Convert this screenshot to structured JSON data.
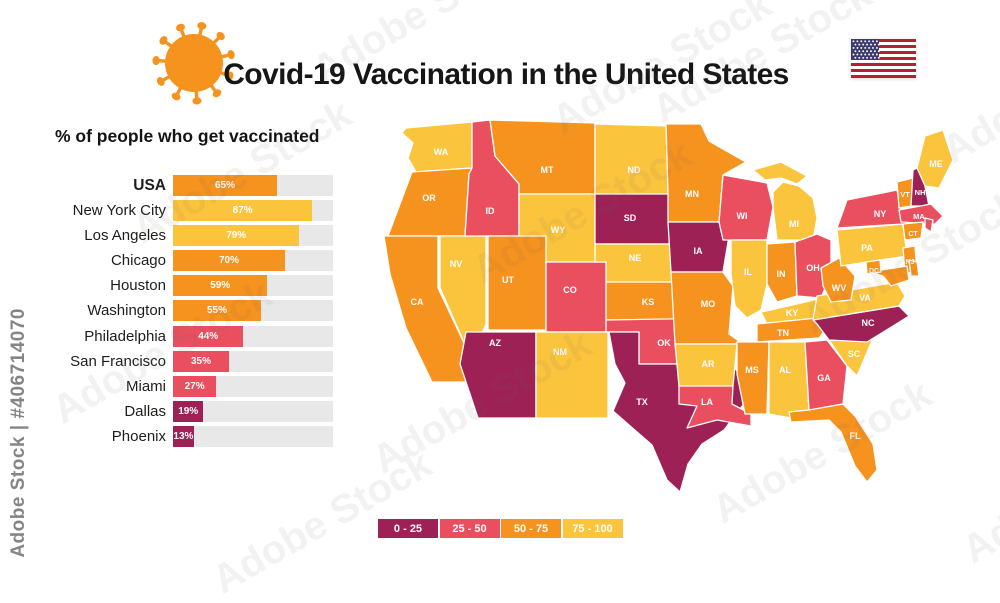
{
  "watermark": {
    "side_text": "Adobe Stock | #406714070",
    "tile_text": "Adobe Stock"
  },
  "header": {
    "title": "Covid-19 Vaccination in the United States"
  },
  "colors": {
    "bucket_0_25": "#9E2155",
    "bucket_25_50": "#E94F5F",
    "bucket_50_75": "#F6921E",
    "bucket_75_100": "#FBC43D",
    "bar_track": "#E8E8E8"
  },
  "bar_chart": {
    "title": "% of people who get vaccinated",
    "rows": [
      {
        "label": "USA",
        "value": 65,
        "bucket": "50_75",
        "bold": true
      },
      {
        "label": "New York City",
        "value": 87,
        "bucket": "75_100",
        "bold": false
      },
      {
        "label": "Los Angeles",
        "value": 79,
        "bucket": "75_100",
        "bold": false
      },
      {
        "label": "Chicago",
        "value": 70,
        "bucket": "50_75",
        "bold": false
      },
      {
        "label": "Houston",
        "value": 59,
        "bucket": "50_75",
        "bold": false
      },
      {
        "label": "Washington",
        "value": 55,
        "bucket": "50_75",
        "bold": false
      },
      {
        "label": "Philadelphia",
        "value": 44,
        "bucket": "25_50",
        "bold": false
      },
      {
        "label": "San Francisco",
        "value": 35,
        "bucket": "25_50",
        "bold": false
      },
      {
        "label": "Miami",
        "value": 27,
        "bucket": "25_50",
        "bold": false
      },
      {
        "label": "Dallas",
        "value": 19,
        "bucket": "0_25",
        "bold": false
      },
      {
        "label": "Phoenix",
        "value": 13,
        "bucket": "0_25",
        "bold": false
      }
    ]
  },
  "legend": {
    "items": [
      {
        "label": "0 - 25",
        "bucket": "0_25"
      },
      {
        "label": "25 - 50",
        "bucket": "25_50"
      },
      {
        "label": "50 - 75",
        "bucket": "50_75"
      },
      {
        "label": "75 - 100",
        "bucket": "75_100"
      }
    ]
  },
  "map": {
    "states": [
      {
        "id": "WA",
        "label": "WA",
        "bucket": "75_100"
      },
      {
        "id": "OR",
        "label": "OR",
        "bucket": "50_75"
      },
      {
        "id": "CA",
        "label": "CA",
        "bucket": "50_75"
      },
      {
        "id": "NV",
        "label": "NV",
        "bucket": "75_100"
      },
      {
        "id": "ID",
        "label": "ID",
        "bucket": "25_50"
      },
      {
        "id": "MT",
        "label": "MT",
        "bucket": "50_75"
      },
      {
        "id": "WY",
        "label": "WY",
        "bucket": "75_100"
      },
      {
        "id": "UT",
        "label": "UT",
        "bucket": "50_75"
      },
      {
        "id": "CO",
        "label": "CO",
        "bucket": "25_50"
      },
      {
        "id": "AZ",
        "label": "AZ",
        "bucket": "0_25"
      },
      {
        "id": "NM",
        "label": "NM",
        "bucket": "75_100"
      },
      {
        "id": "ND",
        "label": "ND",
        "bucket": "75_100"
      },
      {
        "id": "SD",
        "label": "SD",
        "bucket": "0_25"
      },
      {
        "id": "NE",
        "label": "NE",
        "bucket": "75_100"
      },
      {
        "id": "KS",
        "label": "KS",
        "bucket": "50_75"
      },
      {
        "id": "OK",
        "label": "OK",
        "bucket": "25_50"
      },
      {
        "id": "TX",
        "label": "TX",
        "bucket": "0_25"
      },
      {
        "id": "MN",
        "label": "MN",
        "bucket": "50_75"
      },
      {
        "id": "IA",
        "label": "IA",
        "bucket": "0_25"
      },
      {
        "id": "MO",
        "label": "MO",
        "bucket": "50_75"
      },
      {
        "id": "AR",
        "label": "AR",
        "bucket": "75_100"
      },
      {
        "id": "LA",
        "label": "LA",
        "bucket": "25_50"
      },
      {
        "id": "WI",
        "label": "WI",
        "bucket": "25_50"
      },
      {
        "id": "IL",
        "label": "IL",
        "bucket": "75_100"
      },
      {
        "id": "IN",
        "label": "IN",
        "bucket": "50_75"
      },
      {
        "id": "MI",
        "label": "MI",
        "bucket": "75_100"
      },
      {
        "id": "OH",
        "label": "OH",
        "bucket": "25_50"
      },
      {
        "id": "KY",
        "label": "KY",
        "bucket": "75_100"
      },
      {
        "id": "TN",
        "label": "TN",
        "bucket": "50_75"
      },
      {
        "id": "MS",
        "label": "MS",
        "bucket": "50_75"
      },
      {
        "id": "AL",
        "label": "AL",
        "bucket": "75_100"
      },
      {
        "id": "GA",
        "label": "GA",
        "bucket": "25_50"
      },
      {
        "id": "FL",
        "label": "FL",
        "bucket": "50_75"
      },
      {
        "id": "SC",
        "label": "SC",
        "bucket": "75_100"
      },
      {
        "id": "NC",
        "label": "NC",
        "bucket": "0_25"
      },
      {
        "id": "VA",
        "label": "VA",
        "bucket": "75_100"
      },
      {
        "id": "WV",
        "label": "WV",
        "bucket": "50_75"
      },
      {
        "id": "PA",
        "label": "PA",
        "bucket": "75_100"
      },
      {
        "id": "NY",
        "label": "NY",
        "bucket": "25_50"
      },
      {
        "id": "NJ",
        "label": "NJ",
        "bucket": "50_75"
      },
      {
        "id": "MD",
        "label": "",
        "bucket": "50_75"
      },
      {
        "id": "DE",
        "label": "",
        "bucket": "50_75"
      },
      {
        "id": "DC",
        "label": "DC",
        "bucket": "50_75"
      },
      {
        "id": "VT",
        "label": "VT",
        "bucket": "50_75"
      },
      {
        "id": "NH",
        "label": "NH",
        "bucket": "0_25"
      },
      {
        "id": "ME",
        "label": "ME",
        "bucket": "75_100"
      },
      {
        "id": "MA",
        "label": "MA",
        "bucket": "25_50"
      },
      {
        "id": "CT",
        "label": "CT",
        "bucket": "50_75"
      },
      {
        "id": "RI",
        "label": "",
        "bucket": "25_50"
      }
    ]
  },
  "chart_data": [
    {
      "type": "bar",
      "title": "% of people who get vaccinated",
      "categories": [
        "USA",
        "New York City",
        "Los Angeles",
        "Chicago",
        "Houston",
        "Washington",
        "Philadelphia",
        "San Francisco",
        "Miami",
        "Dallas",
        "Phoenix"
      ],
      "values": [
        65,
        87,
        79,
        70,
        59,
        55,
        44,
        35,
        27,
        19,
        13
      ],
      "xlabel": "",
      "ylabel": "",
      "xlim": [
        0,
        100
      ],
      "orientation": "horizontal",
      "value_labels": [
        "65%",
        "87%",
        "79%",
        "70%",
        "59%",
        "55%",
        "44%",
        "35%",
        "27%",
        "19%",
        "13%"
      ],
      "color_rule": "bucket: 0-25 #9E2155, 25-50 #E94F5F, 50-75 #F6921E, 75-100 #FBC43D"
    },
    {
      "type": "heatmap",
      "subtype": "us-choropleth",
      "title": "Covid-19 Vaccination in the United States",
      "legend_entries": [
        "0 - 25",
        "25 - 50",
        "50 - 75",
        "75 - 100"
      ],
      "legend_colors": [
        "#9E2155",
        "#E94F5F",
        "#F6921E",
        "#FBC43D"
      ],
      "state_buckets": {
        "0-25": [
          "AZ",
          "SD",
          "TX",
          "IA",
          "NC",
          "NH"
        ],
        "25-50": [
          "ID",
          "CO",
          "OK",
          "LA",
          "WI",
          "OH",
          "GA",
          "NY",
          "MA",
          "RI"
        ],
        "50-75": [
          "OR",
          "CA",
          "UT",
          "MT",
          "KS",
          "MO",
          "MN",
          "IN",
          "TN",
          "MS",
          "FL",
          "WV",
          "DC",
          "MD",
          "DE",
          "NJ",
          "VT",
          "CT"
        ],
        "75-100": [
          "WA",
          "NV",
          "WY",
          "NM",
          "ND",
          "NE",
          "AR",
          "IL",
          "MI",
          "KY",
          "VA",
          "PA",
          "SC",
          "AL",
          "ME"
        ]
      }
    }
  ]
}
